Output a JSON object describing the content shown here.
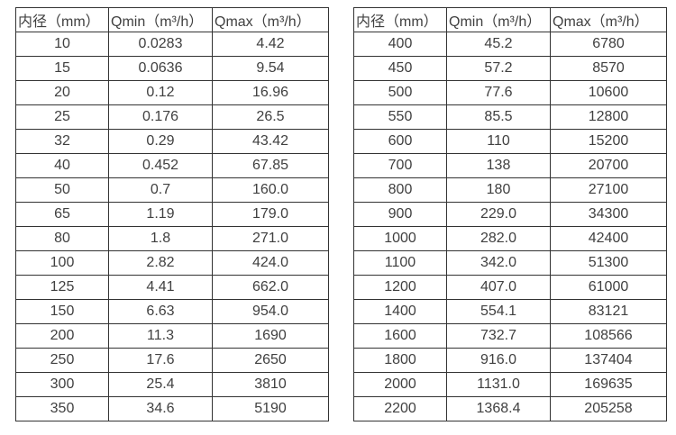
{
  "colors": {
    "background": "#ffffff",
    "border": "#333333",
    "text": "#404040"
  },
  "chart_data": [
    {
      "type": "table",
      "columns": [
        "内径（mm）",
        "Qmin（m³/h）",
        "Qmax（m³/h）"
      ],
      "column_keys": [
        "diameter",
        "qmin",
        "qmax"
      ],
      "rows": [
        [
          "10",
          "0.0283",
          "4.42"
        ],
        [
          "15",
          "0.0636",
          "9.54"
        ],
        [
          "20",
          "0.12",
          "16.96"
        ],
        [
          "25",
          "0.176",
          "26.5"
        ],
        [
          "32",
          "0.29",
          "43.42"
        ],
        [
          "40",
          "0.452",
          "67.85"
        ],
        [
          "50",
          "0.7",
          "160.0"
        ],
        [
          "65",
          "1.19",
          "179.0"
        ],
        [
          "80",
          "1.8",
          "271.0"
        ],
        [
          "100",
          "2.82",
          "424.0"
        ],
        [
          "125",
          "4.41",
          "662.0"
        ],
        [
          "150",
          "6.63",
          "954.0"
        ],
        [
          "200",
          "11.3",
          "1690"
        ],
        [
          "250",
          "17.6",
          "2650"
        ],
        [
          "300",
          "25.4",
          "3810"
        ],
        [
          "350",
          "34.6",
          "5190"
        ]
      ]
    },
    {
      "type": "table",
      "columns": [
        "内径（mm）",
        "Qmin（m³/h）",
        "Qmax（m³/h）"
      ],
      "column_keys": [
        "diameter",
        "qmin",
        "qmax"
      ],
      "rows": [
        [
          "400",
          "45.2",
          "6780"
        ],
        [
          "450",
          "57.2",
          "8570"
        ],
        [
          "500",
          "77.6",
          "10600"
        ],
        [
          "550",
          "85.5",
          "12800"
        ],
        [
          "600",
          "110",
          "15200"
        ],
        [
          "700",
          "138",
          "20700"
        ],
        [
          "800",
          "180",
          "27100"
        ],
        [
          "900",
          "229.0",
          "34300"
        ],
        [
          "1000",
          "282.0",
          "42400"
        ],
        [
          "1100",
          "342.0",
          "51300"
        ],
        [
          "1200",
          "407.0",
          "61000"
        ],
        [
          "1400",
          "554.1",
          "83121"
        ],
        [
          "1600",
          "732.7",
          "108566"
        ],
        [
          "1800",
          "916.0",
          "137404"
        ],
        [
          "2000",
          "1131.0",
          "169635"
        ],
        [
          "2200",
          "1368.4",
          "205258"
        ]
      ]
    }
  ]
}
